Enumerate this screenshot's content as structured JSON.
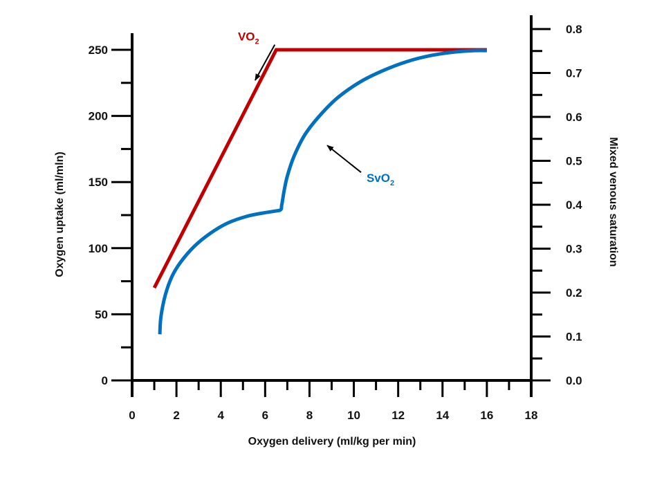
{
  "chart_data": {
    "type": "line",
    "xlabel": "Oxygen delivery (ml/kg per min)",
    "ylabel": "Oxygen uptake (ml/mln)",
    "y2label": "Mixed venous saturation",
    "xlim": [
      0,
      18
    ],
    "ylim": [
      0,
      260
    ],
    "y2lim": [
      0,
      0.82
    ],
    "x_ticks": [
      "0",
      "2",
      "4",
      "6",
      "8",
      "10",
      "12",
      "14",
      "16",
      "18"
    ],
    "y_ticks": [
      "0",
      "50",
      "100",
      "150",
      "200",
      "250"
    ],
    "y2_ticks": [
      "0.0",
      "0.1",
      "0.2",
      "0.3",
      "0.4",
      "0.5",
      "0.6",
      "0.7",
      "0.8"
    ],
    "series": [
      {
        "name": "VO",
        "sub": "2",
        "axis": "left",
        "color": "#c00000",
        "x": [
          1,
          6.5,
          16
        ],
        "y": [
          70,
          250,
          250
        ]
      },
      {
        "name": "SvO",
        "sub": "2",
        "axis": "right",
        "color": "#0070c0",
        "x": [
          1.25,
          1.3,
          1.5,
          1.8,
          2.2,
          2.8,
          3.5,
          4.3,
          5.2,
          6.0,
          6.65,
          6.75,
          6.85,
          7.0,
          7.3,
          7.8,
          8.5,
          9.3,
          10.3,
          11.3,
          12.4,
          13.5,
          14.6,
          15.5,
          16.0
        ],
        "y": [
          0.105,
          0.145,
          0.195,
          0.237,
          0.27,
          0.305,
          0.334,
          0.358,
          0.374,
          0.382,
          0.387,
          0.4,
          0.43,
          0.465,
          0.51,
          0.56,
          0.605,
          0.645,
          0.68,
          0.705,
          0.726,
          0.74,
          0.748,
          0.751,
          0.751
        ]
      }
    ],
    "annotations": [
      {
        "series": 0,
        "text": "VO",
        "sub": "2",
        "label_x": 5.25,
        "label_y": 257,
        "arrow_to_x": 5.55,
        "arrow_to_y": 227,
        "arrow_from_x": 3.8,
        "arrow_from_y": 250
      },
      {
        "series": 1,
        "text": "SvO",
        "sub": "2",
        "label_x": 11.2,
        "label_y": 150,
        "arrow_to_x": 8.8,
        "arrow_to_y": 0.535,
        "arrow_from_x": 10.5,
        "arrow_from_y": 0.48
      }
    ]
  }
}
